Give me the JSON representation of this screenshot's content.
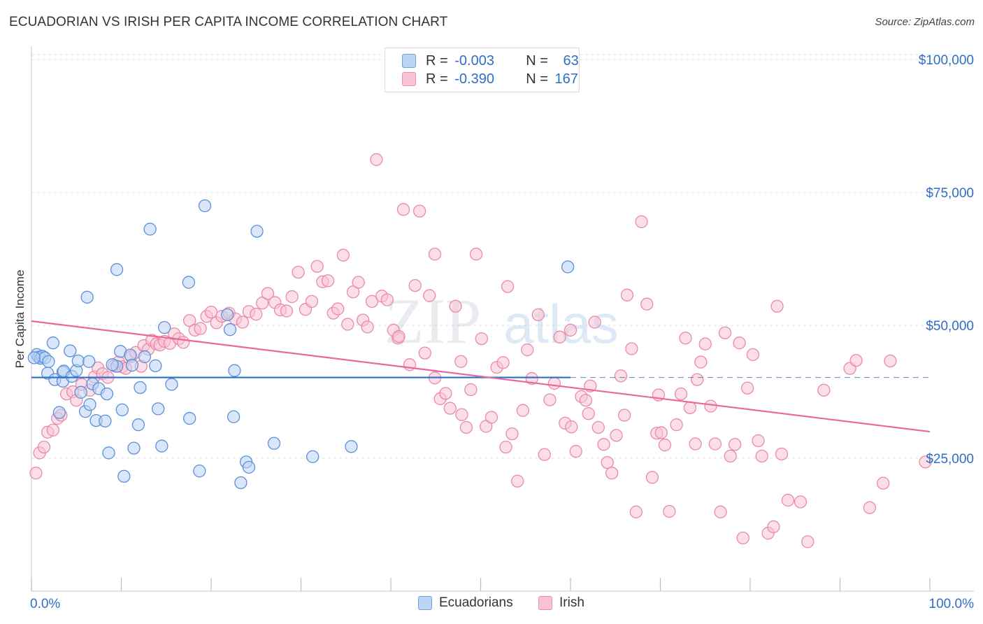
{
  "header": {
    "title": "ECUADORIAN VS IRISH PER CAPITA INCOME CORRELATION CHART",
    "source": "Source: ZipAtlas.com"
  },
  "legend": {
    "rows": [
      {
        "r_label": "R = ",
        "r_value": "-0.003",
        "n_label": "N = ",
        "n_value": "63"
      },
      {
        "r_label": "R = ",
        "r_value": "-0.390",
        "n_label": "N = ",
        "n_value": "167"
      }
    ],
    "bottom": [
      "Ecuadorians",
      "Irish"
    ]
  },
  "watermark": {
    "zip": "ZIP",
    "atlas": "atlas"
  },
  "colors": {
    "ecuadorians_fill": "#bcd4f5",
    "ecuadorians_stroke": "#5b90d8",
    "ecuadorians_line": "#2c6fc6",
    "irish_fill": "#f9c3d3",
    "irish_stroke": "#e98aa9",
    "irish_line": "#e9679a",
    "axis_label": "#2f6ec4",
    "grid": "#e2e2e2"
  },
  "chart_data": {
    "type": "scatter",
    "title": "ECUADORIAN VS IRISH PER CAPITA INCOME CORRELATION CHART",
    "xlabel": "",
    "ylabel": "Per Capita Income",
    "xlim": [
      0,
      100
    ],
    "ylim": [
      0,
      102000
    ],
    "x_tick_labels": [
      "0.0%",
      "100.0%"
    ],
    "y_ticks": [
      25000,
      50000,
      75000,
      100000
    ],
    "y_tick_labels": [
      "$25,000",
      "$50,000",
      "$75,000",
      "$100,000"
    ],
    "grid": true,
    "legend_position": "top-center",
    "series": [
      {
        "name": "Ecuadorians",
        "r": -0.003,
        "n": 63,
        "trend": {
          "x": [
            0,
            60
          ],
          "y": [
            40200,
            40200
          ],
          "dashed_extension_to": 100
        },
        "points": [
          [
            0.6,
            44.5
          ],
          [
            0.8,
            44.0
          ],
          [
            1.0,
            43.8
          ],
          [
            1.2,
            44.2
          ],
          [
            1.5,
            43.9
          ],
          [
            1.9,
            43.2
          ],
          [
            1.8,
            41.0
          ],
          [
            2.4,
            46.7
          ],
          [
            2.6,
            39.8
          ],
          [
            3.5,
            39.5
          ],
          [
            3.5,
            41.2
          ],
          [
            3.6,
            41.4
          ],
          [
            4.3,
            45.2
          ],
          [
            4.5,
            40.4
          ],
          [
            5.0,
            41.5
          ],
          [
            5.2,
            43.3
          ],
          [
            5.5,
            37.4
          ],
          [
            6.0,
            33.8
          ],
          [
            6.2,
            55.3
          ],
          [
            6.4,
            43.2
          ],
          [
            6.5,
            35.1
          ],
          [
            6.8,
            39.0
          ],
          [
            7.2,
            32.1
          ],
          [
            7.5,
            38.1
          ],
          [
            8.2,
            32.0
          ],
          [
            8.4,
            37.1
          ],
          [
            8.6,
            26.0
          ],
          [
            9.5,
            42.3
          ],
          [
            9.5,
            60.5
          ],
          [
            9.9,
            45.1
          ],
          [
            10.1,
            34.1
          ],
          [
            10.3,
            21.6
          ],
          [
            11.0,
            44.4
          ],
          [
            11.2,
            42.5
          ],
          [
            11.4,
            26.9
          ],
          [
            11.9,
            31.3
          ],
          [
            12.1,
            38.3
          ],
          [
            12.6,
            44.1
          ],
          [
            13.2,
            68.1
          ],
          [
            13.8,
            42.4
          ],
          [
            14.1,
            34.3
          ],
          [
            14.5,
            27.3
          ],
          [
            14.8,
            49.6
          ],
          [
            15.6,
            38.9
          ],
          [
            17.5,
            58.1
          ],
          [
            17.6,
            32.5
          ],
          [
            18.7,
            22.6
          ],
          [
            19.3,
            72.5
          ],
          [
            21.8,
            52.0
          ],
          [
            22.1,
            49.2
          ],
          [
            22.5,
            32.8
          ],
          [
            22.6,
            41.5
          ],
          [
            23.3,
            20.4
          ],
          [
            23.9,
            24.3
          ],
          [
            24.2,
            23.3
          ],
          [
            25.1,
            67.7
          ],
          [
            27.0,
            27.8
          ],
          [
            31.3,
            25.3
          ],
          [
            35.6,
            27.2
          ],
          [
            59.7,
            61.0
          ],
          [
            3.1,
            33.6
          ],
          [
            0.3,
            43.9
          ],
          [
            9.0,
            42.6
          ]
        ]
      },
      {
        "name": "Irish",
        "r": -0.39,
        "n": 167,
        "trend": {
          "x": [
            0,
            100
          ],
          "y": [
            50800,
            30000
          ]
        },
        "points": [
          [
            0.5,
            22.2
          ],
          [
            0.9,
            26.0
          ],
          [
            1.4,
            27.1
          ],
          [
            1.8,
            29.9
          ],
          [
            2.4,
            30.3
          ],
          [
            2.9,
            32.5
          ],
          [
            3.3,
            33.1
          ],
          [
            3.9,
            37.1
          ],
          [
            4.6,
            37.5
          ],
          [
            5.0,
            35.9
          ],
          [
            5.6,
            38.9
          ],
          [
            6.5,
            37.8
          ],
          [
            7.0,
            40.3
          ],
          [
            7.4,
            42.0
          ],
          [
            7.9,
            40.9
          ],
          [
            8.5,
            40.2
          ],
          [
            9.2,
            42.4
          ],
          [
            9.7,
            43.1
          ],
          [
            10.1,
            42.2
          ],
          [
            10.5,
            41.9
          ],
          [
            11.1,
            44.1
          ],
          [
            11.6,
            44.9
          ],
          [
            12.2,
            42.3
          ],
          [
            12.5,
            46.2
          ],
          [
            13.0,
            45.5
          ],
          [
            13.4,
            47.2
          ],
          [
            13.9,
            46.5
          ],
          [
            14.3,
            46.3
          ],
          [
            14.8,
            47.0
          ],
          [
            15.4,
            46.6
          ],
          [
            15.9,
            48.4
          ],
          [
            16.4,
            47.5
          ],
          [
            16.9,
            46.8
          ],
          [
            17.6,
            50.9
          ],
          [
            18.2,
            49.1
          ],
          [
            18.8,
            49.4
          ],
          [
            19.5,
            51.7
          ],
          [
            20.0,
            52.5
          ],
          [
            20.6,
            50.5
          ],
          [
            21.2,
            51.7
          ],
          [
            22.0,
            52.3
          ],
          [
            22.7,
            51.2
          ],
          [
            23.5,
            50.6
          ],
          [
            24.2,
            52.6
          ],
          [
            25.0,
            52.1
          ],
          [
            25.7,
            54.2
          ],
          [
            26.3,
            56.0
          ],
          [
            27.1,
            54.3
          ],
          [
            27.7,
            52.9
          ],
          [
            28.4,
            52.7
          ],
          [
            29.0,
            55.4
          ],
          [
            29.7,
            60.0
          ],
          [
            30.5,
            53.0
          ],
          [
            31.2,
            54.5
          ],
          [
            31.8,
            61.1
          ],
          [
            32.4,
            58.2
          ],
          [
            33.0,
            58.4
          ],
          [
            33.6,
            52.3
          ],
          [
            34.1,
            53.1
          ],
          [
            34.7,
            63.2
          ],
          [
            35.2,
            50.2
          ],
          [
            35.8,
            56.3
          ],
          [
            36.4,
            58.1
          ],
          [
            36.9,
            51.0
          ],
          [
            37.4,
            49.7
          ],
          [
            37.9,
            54.5
          ],
          [
            38.4,
            81.2
          ],
          [
            39.0,
            55.5
          ],
          [
            39.6,
            54.8
          ],
          [
            40.3,
            49.1
          ],
          [
            40.8,
            47.6
          ],
          [
            41.4,
            71.8
          ],
          [
            42.1,
            42.6
          ],
          [
            42.7,
            57.5
          ],
          [
            43.2,
            71.5
          ],
          [
            43.8,
            44.8
          ],
          [
            44.3,
            55.6
          ],
          [
            44.9,
            63.4
          ],
          [
            45.5,
            36.2
          ],
          [
            46.1,
            37.2
          ],
          [
            46.6,
            34.4
          ],
          [
            47.2,
            53.6
          ],
          [
            47.8,
            43.2
          ],
          [
            48.4,
            30.8
          ],
          [
            48.9,
            37.9
          ],
          [
            49.5,
            63.4
          ],
          [
            50.1,
            47.5
          ],
          [
            50.6,
            31.0
          ],
          [
            51.2,
            32.7
          ],
          [
            51.8,
            42.1
          ],
          [
            52.5,
            43.0
          ],
          [
            53.0,
            57.3
          ],
          [
            53.5,
            29.6
          ],
          [
            54.1,
            20.7
          ],
          [
            54.7,
            34.0
          ],
          [
            55.2,
            45.4
          ],
          [
            55.7,
            40.0
          ],
          [
            56.4,
            52.0
          ],
          [
            57.1,
            25.7
          ],
          [
            57.7,
            36.0
          ],
          [
            58.2,
            39.1
          ],
          [
            58.8,
            47.8
          ],
          [
            59.4,
            31.6
          ],
          [
            60.0,
            49.1
          ],
          [
            60.6,
            26.3
          ],
          [
            61.2,
            36.6
          ],
          [
            61.7,
            35.9
          ],
          [
            62.2,
            38.6
          ],
          [
            62.7,
            50.6
          ],
          [
            63.1,
            30.8
          ],
          [
            63.7,
            27.6
          ],
          [
            64.1,
            24.2
          ],
          [
            64.6,
            22.2
          ],
          [
            65.1,
            29.3
          ],
          [
            65.6,
            40.5
          ],
          [
            66.3,
            55.7
          ],
          [
            66.8,
            45.6
          ],
          [
            67.3,
            14.9
          ],
          [
            67.9,
            69.5
          ],
          [
            68.5,
            54.0
          ],
          [
            69.1,
            21.4
          ],
          [
            69.6,
            29.7
          ],
          [
            70.1,
            29.8
          ],
          [
            70.5,
            27.5
          ],
          [
            71.0,
            15.0
          ],
          [
            71.8,
            31.3
          ],
          [
            72.3,
            37.1
          ],
          [
            72.8,
            47.6
          ],
          [
            73.3,
            34.5
          ],
          [
            73.9,
            27.7
          ],
          [
            74.5,
            43.1
          ],
          [
            75.0,
            46.5
          ],
          [
            75.6,
            34.8
          ],
          [
            76.1,
            27.7
          ],
          [
            76.7,
            14.9
          ],
          [
            77.2,
            48.6
          ],
          [
            77.8,
            25.4
          ],
          [
            78.3,
            27.6
          ],
          [
            78.8,
            46.7
          ],
          [
            79.2,
            10.0
          ],
          [
            79.7,
            38.2
          ],
          [
            80.3,
            44.5
          ],
          [
            80.9,
            28.3
          ],
          [
            81.3,
            25.4
          ],
          [
            82.0,
            10.9
          ],
          [
            82.6,
            12.1
          ],
          [
            83.0,
            53.6
          ],
          [
            83.5,
            25.8
          ],
          [
            84.2,
            17.1
          ],
          [
            85.6,
            16.8
          ],
          [
            86.4,
            9.3
          ],
          [
            91.1,
            41.9
          ],
          [
            91.8,
            43.4
          ],
          [
            93.3,
            15.7
          ],
          [
            94.8,
            20.3
          ],
          [
            99.5,
            24.3
          ],
          [
            95.6,
            43.3
          ],
          [
            88.2,
            37.8
          ],
          [
            74.1,
            39.8
          ],
          [
            69.8,
            36.9
          ],
          [
            66.0,
            33.1
          ],
          [
            62.0,
            33.4
          ],
          [
            60.1,
            30.9
          ],
          [
            52.8,
            27.1
          ],
          [
            47.9,
            33.2
          ],
          [
            44.9,
            40.1
          ],
          [
            40.9,
            47.9
          ]
        ]
      }
    ]
  }
}
